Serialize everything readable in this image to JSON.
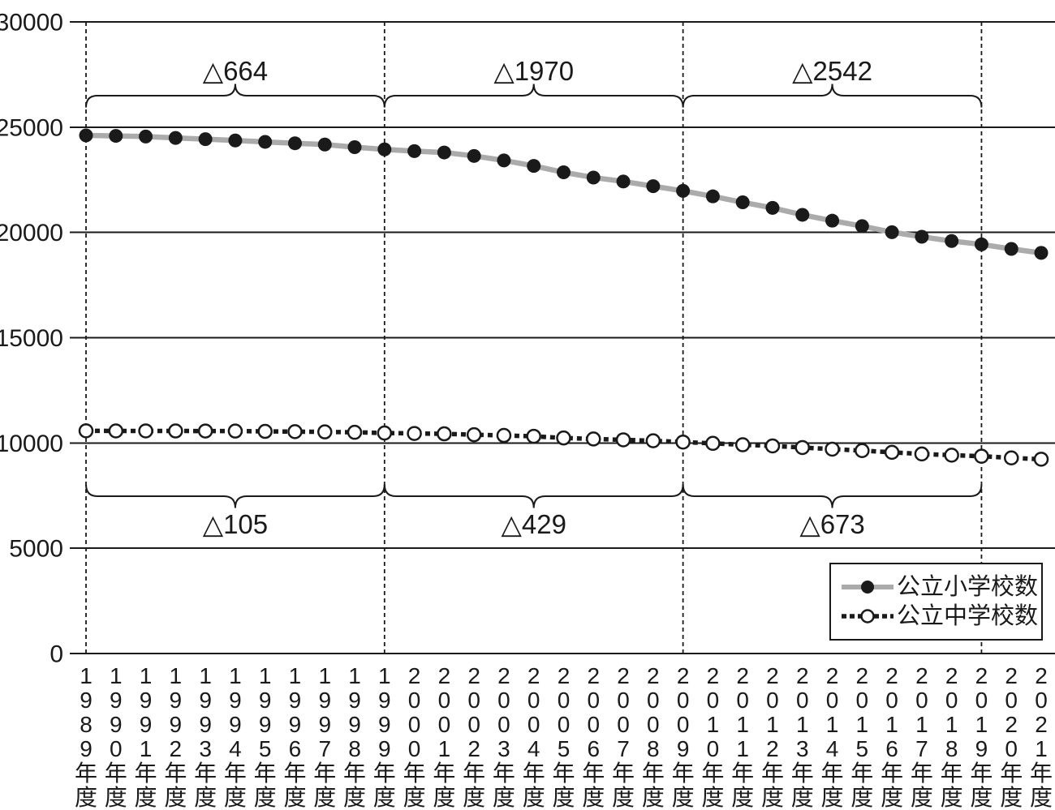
{
  "colors": {
    "background": "#ffffff",
    "axis_and_text": "#1a1a1a",
    "grid_line": "#1a1a1a",
    "elementary_line": "#ababab",
    "elementary_marker": "#1a1a1a",
    "junior_line": "#1a1a1a",
    "junior_marker_fill": "#ffffff"
  },
  "chart_data": {
    "type": "line",
    "x_labels": [
      "1989年度",
      "1990年度",
      "1991年度",
      "1992年度",
      "1993年度",
      "1994年度",
      "1995年度",
      "1996年度",
      "1997年度",
      "1998年度",
      "1999年度",
      "2000年度",
      "2001年度",
      "2002年度",
      "2003年度",
      "2004年度",
      "2005年度",
      "2006年度",
      "2007年度",
      "2008年度",
      "2009年度",
      "2010年度",
      "2011年度",
      "2012年度",
      "2013年度",
      "2014年度",
      "2015年度",
      "2016年度",
      "2017年度",
      "2018年度",
      "2019年度",
      "2020年度",
      "2021年度"
    ],
    "ylim": [
      0,
      30000
    ],
    "yticks": [
      0,
      5000,
      10000,
      15000,
      20000,
      25000,
      30000
    ],
    "grid": "horizontal",
    "series": [
      {
        "name": "公立小学校数",
        "line_style": "solid",
        "line_color": "#ababab",
        "marker": "filled-circle",
        "marker_color": "#1a1a1a",
        "values": [
          24608,
          24586,
          24556,
          24487,
          24430,
          24367,
          24302,
          24235,
          24176,
          24051,
          23944,
          23861,
          23797,
          23633,
          23420,
          23160,
          22856,
          22607,
          22420,
          22197,
          21974,
          21713,
          21431,
          21166,
          20836,
          20558,
          20302,
          20011,
          19794,
          19591,
          19432,
          19217,
          19028
        ]
      },
      {
        "name": "公立中学校数",
        "line_style": "dotted",
        "line_color": "#1a1a1a",
        "marker": "open-circle",
        "marker_color": "#ffffff",
        "values": [
          10578,
          10571,
          10573,
          10570,
          10568,
          10565,
          10551,
          10538,
          10527,
          10507,
          10473,
          10453,
          10435,
          10392,
          10358,
          10317,
          10238,
          10190,
          10150,
          10104,
          10044,
          9982,
          9915,
          9860,
          9784,
          9707,
          9637,
          9555,
          9479,
          9421,
          9371,
          9291,
          9230
        ]
      }
    ],
    "vline_year_indices": [
      0,
      10,
      20,
      30
    ],
    "annotations_top": [
      {
        "from_index": 0,
        "to_index": 10,
        "label": "△664"
      },
      {
        "from_index": 10,
        "to_index": 20,
        "label": "△1970"
      },
      {
        "from_index": 20,
        "to_index": 30,
        "label": "△2542"
      }
    ],
    "annotations_bottom": [
      {
        "from_index": 0,
        "to_index": 10,
        "label": "△105"
      },
      {
        "from_index": 10,
        "to_index": 20,
        "label": "△429"
      },
      {
        "from_index": 20,
        "to_index": 30,
        "label": "△673"
      }
    ],
    "legend": {
      "position": "bottom-right",
      "entries": [
        "公立小学校数",
        "公立中学校数"
      ]
    }
  }
}
